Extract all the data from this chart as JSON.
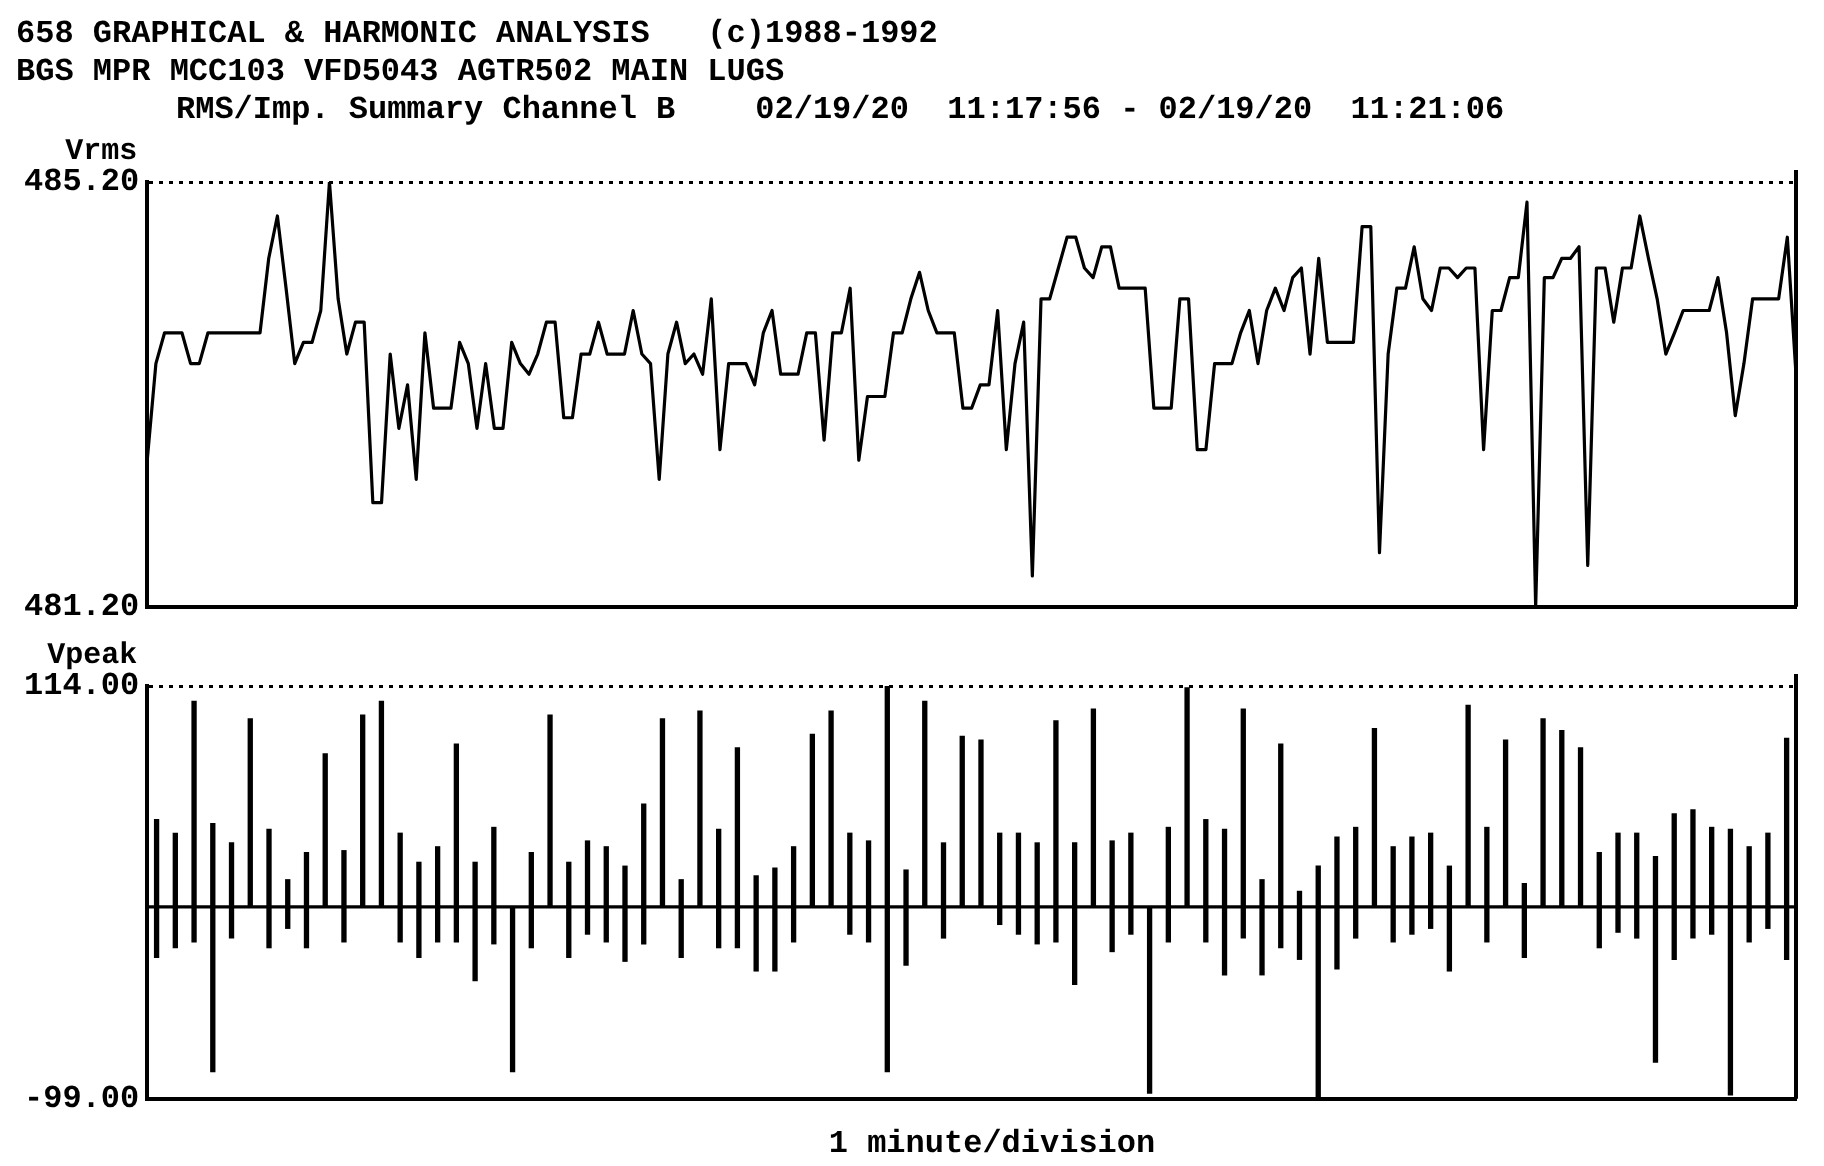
{
  "chart_data": [
    {
      "type": "line",
      "title": "658 GRAPHICAL & HARMONIC ANALYSIS   (c)1988-1992",
      "subtitle": "BGS MPR MCC103 VFD5043 AGTR502 MAIN LUGS",
      "annotations": [
        "RMS/Imp. Summary Channel B",
        "02/19/20  11:17:56 - 02/19/20  11:21:06"
      ],
      "ylabel": "Vrms",
      "color": "#000000",
      "grid": "y",
      "tick_labels": "y",
      "ylim": [
        481.2,
        485.2
      ],
      "yticks": [
        {
          "value": 481.2,
          "label": "481.20"
        },
        {
          "value": 485.2,
          "label": "485.20"
        }
      ],
      "categories": [
        null,
        null,
        null,
        null,
        null,
        null,
        null,
        null,
        null,
        null,
        null,
        null,
        null,
        null,
        null,
        null,
        null,
        null,
        null,
        null,
        null,
        null,
        null,
        null,
        null,
        null,
        null,
        null,
        null,
        null,
        null,
        null,
        null,
        null,
        null,
        null,
        null,
        null,
        null,
        null,
        null,
        null,
        null,
        null,
        null,
        null,
        null,
        null,
        null,
        null,
        null,
        null,
        null,
        null,
        null,
        null,
        null,
        null,
        null,
        null,
        null,
        null,
        null,
        null,
        null,
        null,
        null,
        null,
        null,
        null,
        null,
        null,
        null,
        null,
        null,
        null,
        null,
        null,
        null,
        null,
        null,
        null,
        null,
        null,
        null,
        null,
        null,
        null,
        null,
        null,
        null,
        null,
        null,
        null,
        null,
        null,
        null,
        null,
        null,
        null,
        null,
        null,
        null,
        null,
        null,
        null,
        null,
        null,
        null,
        null,
        null,
        null,
        null,
        null,
        null,
        null,
        null,
        null,
        null,
        null,
        null,
        null,
        null,
        null,
        null,
        null,
        null,
        null,
        null,
        null,
        null,
        null,
        null,
        null,
        null,
        null,
        null,
        null,
        null,
        null,
        null,
        null,
        null,
        null,
        null,
        null,
        null,
        null,
        null,
        null,
        null,
        null,
        null,
        null,
        null,
        null,
        null,
        null,
        null,
        null,
        null,
        null,
        null,
        null,
        null,
        null,
        null,
        null,
        null,
        null,
        null,
        null,
        null,
        null,
        null,
        null,
        null,
        null,
        null,
        null,
        null,
        null,
        null,
        null,
        null,
        null,
        null,
        null,
        null,
        null,
        null
      ],
      "values": [
        482.58,
        483.49,
        483.78,
        483.78,
        483.78,
        483.49,
        483.49,
        483.78,
        483.78,
        483.78,
        483.78,
        483.78,
        483.78,
        483.78,
        484.48,
        484.88,
        484.2,
        483.49,
        483.69,
        483.69,
        483.99,
        485.2,
        484.1,
        483.58,
        483.88,
        483.88,
        482.18,
        482.18,
        483.58,
        482.88,
        483.29,
        482.4,
        483.78,
        483.07,
        483.07,
        483.07,
        483.69,
        483.49,
        482.88,
        483.49,
        482.88,
        482.88,
        483.69,
        483.49,
        483.39,
        483.58,
        483.88,
        483.88,
        482.98,
        482.98,
        483.58,
        483.58,
        483.88,
        483.58,
        483.58,
        483.58,
        483.99,
        483.58,
        483.49,
        482.4,
        483.58,
        483.88,
        483.49,
        483.58,
        483.39,
        484.1,
        482.68,
        483.49,
        483.49,
        483.49,
        483.29,
        483.78,
        483.99,
        483.39,
        483.39,
        483.39,
        483.78,
        483.78,
        482.77,
        483.78,
        483.78,
        484.2,
        482.58,
        483.18,
        483.18,
        483.18,
        483.78,
        483.78,
        484.1,
        484.35,
        483.99,
        483.78,
        483.78,
        483.78,
        483.07,
        483.07,
        483.29,
        483.29,
        483.99,
        482.68,
        483.49,
        483.88,
        481.49,
        484.1,
        484.1,
        484.39,
        484.68,
        484.68,
        484.39,
        484.3,
        484.59,
        484.59,
        484.2,
        484.2,
        484.2,
        484.2,
        483.07,
        483.07,
        483.07,
        484.1,
        484.1,
        482.68,
        482.68,
        483.49,
        483.49,
        483.49,
        483.78,
        483.99,
        483.49,
        483.99,
        484.2,
        483.99,
        484.3,
        484.39,
        483.58,
        484.48,
        483.69,
        483.69,
        483.69,
        483.69,
        484.78,
        484.78,
        481.71,
        483.58,
        484.2,
        484.2,
        484.59,
        484.1,
        483.99,
        484.39,
        484.39,
        484.3,
        484.39,
        484.39,
        482.68,
        483.99,
        483.99,
        484.3,
        484.3,
        485.01,
        481.2,
        484.3,
        484.3,
        484.48,
        484.48,
        484.59,
        481.59,
        484.39,
        484.39,
        483.88,
        484.39,
        484.39,
        484.88,
        484.48,
        484.1,
        483.58,
        483.78,
        483.99,
        483.99,
        483.99,
        483.99,
        484.3,
        483.78,
        483.0,
        483.49,
        484.1,
        484.1,
        484.1,
        484.1,
        484.68,
        483.39
      ]
    },
    {
      "type": "bar",
      "ylabel": "Vpeak",
      "xlabel": "1 minute/division",
      "color": "#000000",
      "grid": "y",
      "tick_labels": "y",
      "ylim": [
        -99,
        114
      ],
      "yticks": [
        {
          "value": -99,
          "label": "-99.00"
        },
        {
          "value": 114,
          "label": "114.00"
        }
      ],
      "ref_lines": [
        {
          "axis": "y",
          "value": 0
        }
      ],
      "categories": [
        null,
        null,
        null,
        null,
        null,
        null,
        null,
        null,
        null,
        null,
        null,
        null,
        null,
        null,
        null,
        null,
        null,
        null,
        null,
        null,
        null,
        null,
        null,
        null,
        null,
        null,
        null,
        null,
        null,
        null,
        null,
        null,
        null,
        null,
        null,
        null,
        null,
        null,
        null,
        null,
        null,
        null,
        null,
        null,
        null,
        null,
        null,
        null,
        null,
        null,
        null,
        null,
        null,
        null,
        null,
        null,
        null,
        null,
        null,
        null,
        null,
        null,
        null,
        null,
        null,
        null,
        null,
        null,
        null,
        null,
        null,
        null,
        null,
        null,
        null,
        null,
        null,
        null,
        null,
        null,
        null,
        null,
        null,
        null,
        null,
        null,
        null,
        null
      ],
      "base": [
        -26,
        -21,
        -18,
        -85,
        -16,
        0,
        -21,
        -11,
        -21,
        0,
        -18,
        0,
        0,
        -18,
        -26,
        -18,
        -18,
        -38,
        -19,
        -85,
        -21,
        0,
        -26,
        -14,
        -18,
        -28,
        -19,
        0,
        -26,
        0,
        -21,
        -21,
        -33,
        -33,
        -18,
        0,
        0,
        -14,
        -18,
        -85,
        -30,
        0,
        -16,
        0,
        0,
        -9,
        -14,
        -19,
        -18,
        -40,
        0,
        -23,
        -14,
        -96,
        -18,
        0,
        -18,
        -35,
        -16,
        -35,
        -21,
        -27,
        -99,
        -32,
        -16,
        0,
        -18,
        -14,
        -11,
        -33,
        0,
        -18,
        0,
        -26,
        0,
        0,
        0,
        -21,
        -13,
        -16,
        -80,
        -27,
        -16,
        -14,
        -97,
        -18,
        -11,
        -27
      ],
      "values": [
        71,
        59,
        124,
        128,
        49,
        97,
        61,
        25,
        49,
        79,
        47,
        99,
        106,
        56,
        49,
        49,
        102,
        61,
        60,
        85,
        49,
        99,
        49,
        48,
        49,
        49,
        72,
        97,
        40,
        101,
        61,
        103,
        49,
        53,
        49,
        89,
        101,
        52,
        52,
        199,
        49,
        106,
        49,
        88,
        86,
        47,
        52,
        52,
        114,
        73,
        102,
        57,
        52,
        96,
        59,
        113,
        63,
        75,
        118,
        49,
        105,
        35,
        120,
        68,
        57,
        92,
        49,
        50,
        49,
        54,
        104,
        59,
        86,
        38,
        97,
        91,
        82,
        49,
        51,
        54,
        106,
        75,
        66,
        55,
        137,
        49,
        49,
        114
      ]
    }
  ]
}
